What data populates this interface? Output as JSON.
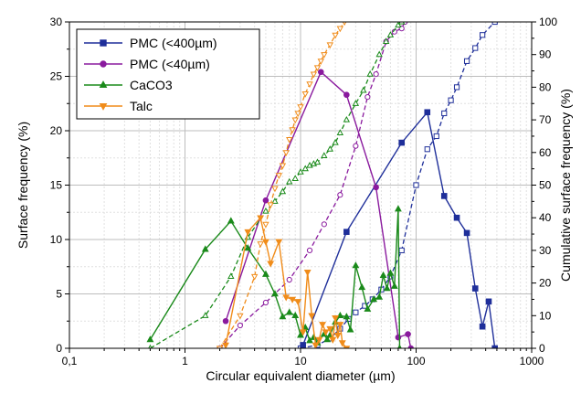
{
  "chart_data": {
    "type": "scatter",
    "xlabel": "Circular equivalent diameter (µm)",
    "ylabel": "Surface frequency (%)",
    "y2label": "Cumulative surface frequency (%)",
    "x_scale": "log",
    "xlim": [
      0.1,
      1000
    ],
    "ylim": [
      0,
      30
    ],
    "y2lim": [
      0,
      100
    ],
    "x_tick_labels": [
      "0,1",
      "1",
      "10",
      "100",
      "1000"
    ],
    "y_tick_labels": [
      "0",
      "5",
      "10",
      "15",
      "20",
      "25",
      "30"
    ],
    "y2_tick_labels": [
      "0",
      "10",
      "20",
      "30",
      "40",
      "50",
      "60",
      "70",
      "80",
      "90",
      "100"
    ],
    "grid": true,
    "legend_position": "top-left",
    "series": [
      {
        "name": "PMC (<400µm)",
        "color": "#1f2f9a",
        "marker": "square",
        "frequency": [
          [
            10.5,
            0.3
          ],
          [
            25,
            10.7
          ],
          [
            75,
            18.9
          ],
          [
            125,
            21.7
          ],
          [
            175,
            14
          ],
          [
            225,
            12
          ],
          [
            275,
            10.6
          ],
          [
            325,
            5.5
          ],
          [
            375,
            2
          ],
          [
            425,
            4.3
          ],
          [
            480,
            0
          ]
        ],
        "cumulative": [
          [
            10,
            0
          ],
          [
            14,
            1
          ],
          [
            18,
            3
          ],
          [
            22,
            6
          ],
          [
            26,
            9
          ],
          [
            30,
            11
          ],
          [
            36,
            13
          ],
          [
            42,
            15
          ],
          [
            50,
            18
          ],
          [
            60,
            22
          ],
          [
            75,
            30
          ],
          [
            100,
            50
          ],
          [
            125,
            61
          ],
          [
            150,
            65
          ],
          [
            175,
            72
          ],
          [
            200,
            76
          ],
          [
            225,
            80
          ],
          [
            275,
            88
          ],
          [
            325,
            92
          ],
          [
            375,
            96
          ],
          [
            480,
            100
          ]
        ]
      },
      {
        "name": "PMC (<40µm)",
        "color": "#8a1a9e",
        "marker": "circle",
        "frequency": [
          [
            2.25,
            2.5
          ],
          [
            5,
            13.6
          ],
          [
            15,
            25.4
          ],
          [
            25,
            23.3
          ],
          [
            45,
            14.8
          ],
          [
            70,
            1
          ],
          [
            85,
            1.3
          ],
          [
            90,
            0
          ]
        ],
        "cumulative": [
          [
            2,
            0
          ],
          [
            3,
            7
          ],
          [
            5,
            14
          ],
          [
            8,
            21
          ],
          [
            12,
            30
          ],
          [
            16,
            38
          ],
          [
            22,
            47
          ],
          [
            30,
            62
          ],
          [
            38,
            77
          ],
          [
            45,
            84
          ],
          [
            55,
            94
          ],
          [
            65,
            97
          ],
          [
            75,
            98
          ],
          [
            80,
            100
          ]
        ]
      },
      {
        "name": "CaCO3",
        "color": "#1a8a1a",
        "marker": "triangle-up",
        "frequency": [
          [
            0.5,
            0.8
          ],
          [
            1.5,
            9.1
          ],
          [
            2.5,
            11.7
          ],
          [
            3.5,
            9.2
          ],
          [
            5,
            6.8
          ],
          [
            6,
            5
          ],
          [
            7,
            2.9
          ],
          [
            8,
            3.3
          ],
          [
            9,
            3
          ],
          [
            10,
            1.2
          ],
          [
            11,
            1.9
          ],
          [
            12,
            0.7
          ],
          [
            13,
            1
          ],
          [
            14,
            0.5
          ],
          [
            16,
            1.3
          ],
          [
            17,
            0.8
          ],
          [
            18,
            1.2
          ],
          [
            20,
            2.4
          ],
          [
            22,
            3
          ],
          [
            25,
            2.9
          ],
          [
            27,
            1.7
          ],
          [
            30,
            7.6
          ],
          [
            34,
            5.6
          ],
          [
            38,
            3.6
          ],
          [
            43,
            4.5
          ],
          [
            48,
            4.7
          ],
          [
            52,
            6.7
          ],
          [
            56,
            5.5
          ],
          [
            60,
            6.9
          ],
          [
            65,
            5.7
          ],
          [
            70,
            12.8
          ],
          [
            72,
            0
          ]
        ],
        "cumulative": [
          [
            0.5,
            0
          ],
          [
            1.5,
            10
          ],
          [
            2.5,
            22
          ],
          [
            3.5,
            34
          ],
          [
            5,
            42
          ],
          [
            6,
            45
          ],
          [
            7,
            48
          ],
          [
            8,
            51
          ],
          [
            9,
            52
          ],
          [
            10,
            54
          ],
          [
            11,
            55
          ],
          [
            12,
            56
          ],
          [
            13,
            56.5
          ],
          [
            14,
            57
          ],
          [
            16,
            59
          ],
          [
            18,
            61
          ],
          [
            20,
            63
          ],
          [
            22,
            66
          ],
          [
            25,
            70
          ],
          [
            30,
            75
          ],
          [
            35,
            79
          ],
          [
            40,
            84
          ],
          [
            48,
            90
          ],
          [
            55,
            94
          ],
          [
            60,
            96
          ],
          [
            70,
            99
          ],
          [
            75,
            100
          ]
        ]
      },
      {
        "name": "Talc",
        "color": "#f08c1a",
        "marker": "triangle-down",
        "frequency": [
          [
            2.25,
            0.3
          ],
          [
            3.5,
            10.7
          ],
          [
            4.5,
            12
          ],
          [
            5,
            9.8
          ],
          [
            5.5,
            7.8
          ],
          [
            6.5,
            9.8
          ],
          [
            7.5,
            4.7
          ],
          [
            8.5,
            4.5
          ],
          [
            9.5,
            4.3
          ],
          [
            10.5,
            1.5
          ],
          [
            11.5,
            7
          ],
          [
            12.5,
            3
          ],
          [
            13.5,
            0.3
          ],
          [
            14.5,
            0.8
          ],
          [
            15.5,
            2.2
          ],
          [
            16.5,
            1.5
          ],
          [
            18,
            1.8
          ],
          [
            19,
            0.8
          ],
          [
            20,
            2.8
          ],
          [
            21,
            1.2
          ],
          [
            22,
            2.2
          ],
          [
            23,
            0.5
          ],
          [
            25,
            0
          ]
        ],
        "cumulative": [
          [
            2,
            0
          ],
          [
            3,
            10
          ],
          [
            4,
            22
          ],
          [
            4.5,
            32
          ],
          [
            5,
            38
          ],
          [
            5.5,
            44
          ],
          [
            6,
            49
          ],
          [
            6.5,
            53
          ],
          [
            7,
            56
          ],
          [
            7.5,
            60
          ],
          [
            8,
            64
          ],
          [
            8.5,
            67
          ],
          [
            9,
            70
          ],
          [
            9.5,
            72
          ],
          [
            10,
            74
          ],
          [
            11,
            78
          ],
          [
            12,
            81
          ],
          [
            13,
            84
          ],
          [
            14,
            86
          ],
          [
            15,
            88
          ],
          [
            16,
            90
          ],
          [
            18,
            93
          ],
          [
            20,
            96
          ],
          [
            22,
            98
          ],
          [
            24,
            100
          ]
        ]
      }
    ]
  }
}
